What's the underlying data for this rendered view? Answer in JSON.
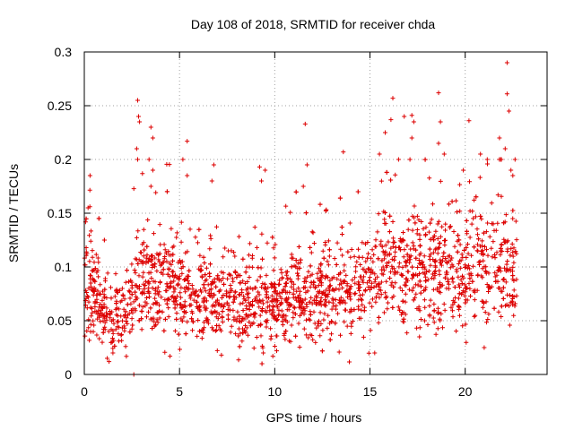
{
  "chart_data": {
    "type": "scatter",
    "title": "Day 108 of 2018, SRMTID for receiver chda",
    "xlabel": "GPS time / hours",
    "ylabel": "SRMTID / TECUs",
    "xlim": [
      0,
      24.3
    ],
    "ylim": [
      0,
      0.3
    ],
    "xticks": [
      0,
      5,
      10,
      15,
      20
    ],
    "yticks": [
      0,
      0.05,
      0.1,
      0.15,
      0.2,
      0.25,
      0.3
    ],
    "xtick_labels": [
      "0",
      "5",
      "10",
      "15",
      "20"
    ],
    "ytick_labels": [
      "0",
      "0.05",
      "0.1",
      "0.15",
      "0.2",
      "0.25",
      "0.3"
    ],
    "grid": true,
    "marker": "+",
    "color": "#dd0000",
    "profile": [
      {
        "x": 0.0,
        "y": 0.085
      },
      {
        "x": 0.5,
        "y": 0.075
      },
      {
        "x": 1.0,
        "y": 0.06
      },
      {
        "x": 1.5,
        "y": 0.055
      },
      {
        "x": 2.0,
        "y": 0.055
      },
      {
        "x": 2.5,
        "y": 0.07
      },
      {
        "x": 3.0,
        "y": 0.09
      },
      {
        "x": 3.5,
        "y": 0.095
      },
      {
        "x": 4.0,
        "y": 0.085
      },
      {
        "x": 5.0,
        "y": 0.08
      },
      {
        "x": 6.0,
        "y": 0.075
      },
      {
        "x": 7.0,
        "y": 0.072
      },
      {
        "x": 8.0,
        "y": 0.07
      },
      {
        "x": 9.0,
        "y": 0.068
      },
      {
        "x": 10.0,
        "y": 0.065
      },
      {
        "x": 11.0,
        "y": 0.072
      },
      {
        "x": 12.0,
        "y": 0.075
      },
      {
        "x": 13.0,
        "y": 0.075
      },
      {
        "x": 14.0,
        "y": 0.08
      },
      {
        "x": 15.0,
        "y": 0.09
      },
      {
        "x": 16.0,
        "y": 0.1
      },
      {
        "x": 17.0,
        "y": 0.1
      },
      {
        "x": 18.0,
        "y": 0.095
      },
      {
        "x": 19.0,
        "y": 0.095
      },
      {
        "x": 20.0,
        "y": 0.095
      },
      {
        "x": 21.0,
        "y": 0.1
      },
      {
        "x": 22.0,
        "y": 0.1
      },
      {
        "x": 22.7,
        "y": 0.09
      }
    ],
    "spikes": [
      {
        "x": 2.8,
        "y": 0.255
      },
      {
        "x": 2.85,
        "y": 0.24
      },
      {
        "x": 2.9,
        "y": 0.235
      },
      {
        "x": 2.75,
        "y": 0.21
      },
      {
        "x": 2.8,
        "y": 0.2
      },
      {
        "x": 3.5,
        "y": 0.23
      },
      {
        "x": 3.6,
        "y": 0.22
      },
      {
        "x": 3.4,
        "y": 0.2
      },
      {
        "x": 3.6,
        "y": 0.19
      },
      {
        "x": 3.5,
        "y": 0.175
      },
      {
        "x": 5.4,
        "y": 0.217
      },
      {
        "x": 5.4,
        "y": 0.185
      },
      {
        "x": 6.8,
        "y": 0.195
      },
      {
        "x": 6.7,
        "y": 0.18
      },
      {
        "x": 0.3,
        "y": 0.185
      },
      {
        "x": 0.2,
        "y": 0.155
      },
      {
        "x": 9.2,
        "y": 0.193
      },
      {
        "x": 9.5,
        "y": 0.19
      },
      {
        "x": 9.3,
        "y": 0.18
      },
      {
        "x": 11.6,
        "y": 0.233
      },
      {
        "x": 11.7,
        "y": 0.195
      },
      {
        "x": 11.5,
        "y": 0.175
      },
      {
        "x": 13.6,
        "y": 0.207
      },
      {
        "x": 15.5,
        "y": 0.205
      },
      {
        "x": 15.8,
        "y": 0.225
      },
      {
        "x": 16.1,
        "y": 0.237
      },
      {
        "x": 16.2,
        "y": 0.257
      },
      {
        "x": 16.8,
        "y": 0.24
      },
      {
        "x": 17.2,
        "y": 0.241
      },
      {
        "x": 17.3,
        "y": 0.235
      },
      {
        "x": 17.2,
        "y": 0.22
      },
      {
        "x": 17.1,
        "y": 0.2
      },
      {
        "x": 18.6,
        "y": 0.262
      },
      {
        "x": 18.7,
        "y": 0.235
      },
      {
        "x": 18.6,
        "y": 0.215
      },
      {
        "x": 20.2,
        "y": 0.236
      },
      {
        "x": 21.8,
        "y": 0.22
      },
      {
        "x": 21.9,
        "y": 0.2
      },
      {
        "x": 22.2,
        "y": 0.29
      },
      {
        "x": 22.2,
        "y": 0.261
      },
      {
        "x": 22.3,
        "y": 0.245
      },
      {
        "x": 22.1,
        "y": 0.21
      },
      {
        "x": 22.4,
        "y": 0.19
      },
      {
        "x": 22.5,
        "y": 0.185
      },
      {
        "x": 20.8,
        "y": 0.205
      },
      {
        "x": 19.9,
        "y": 0.19
      },
      {
        "x": 16.5,
        "y": 0.2
      },
      {
        "x": 18.9,
        "y": 0.205
      },
      {
        "x": 1.2,
        "y": 0.015
      },
      {
        "x": 1.3,
        "y": 0.012
      },
      {
        "x": 1.5,
        "y": 0.02
      },
      {
        "x": 2.6,
        "y": 0.0
      },
      {
        "x": 4.5,
        "y": 0.017
      },
      {
        "x": 7.2,
        "y": 0.018
      },
      {
        "x": 9.4,
        "y": 0.02
      },
      {
        "x": 9.9,
        "y": 0.017
      },
      {
        "x": 10.1,
        "y": 0.022
      },
      {
        "x": 21.0,
        "y": 0.025
      },
      {
        "x": 17.6,
        "y": 0.035
      },
      {
        "x": 14.0,
        "y": 0.038
      }
    ],
    "point_count": 2300
  }
}
